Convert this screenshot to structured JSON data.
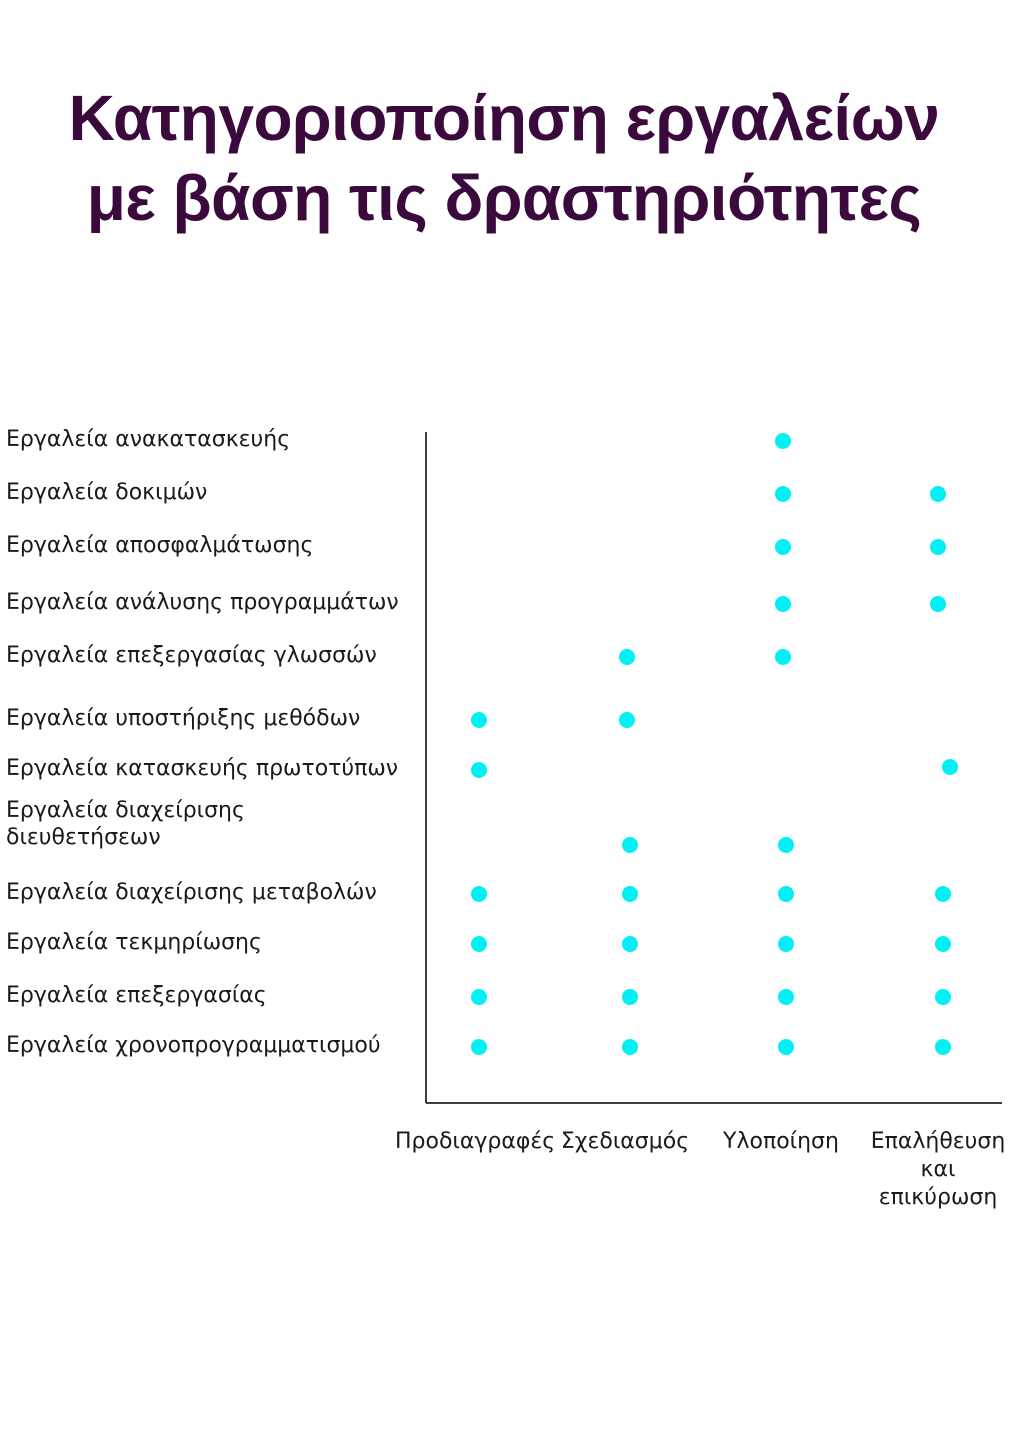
{
  "title": {
    "line1": "Κατηγοριοποίηση εργαλείων",
    "line2": "με βάση τις δραστηριότητες"
  },
  "colors": {
    "title": "#3a0a3c",
    "dot": "#00f0f5",
    "axis": "#000000"
  },
  "chart_data": {
    "type": "scatter",
    "title": "Κατηγοριοποίηση εργαλείων με βάση τις δραστηριότητες",
    "xlabel": "",
    "ylabel": "",
    "grid": false,
    "legend": "none",
    "categories_x": [
      "Προδιαγραφές",
      "Σχεδιασμός",
      "Υλοποίηση",
      "Επαλήθευση και επικύρωση"
    ],
    "categories_y": [
      "Εργαλεία ανακατασκευής",
      "Εργαλεία δοκιμών",
      "Εργαλεία αποσφαλμάτωσης",
      "Εργαλεία ανάλυσης προγραμμάτων",
      "Εργαλεία επεξεργασίας γλωσσών",
      "Εργαλεία υποστήριξης μεθόδων",
      "Εργαλεία κατασκευής πρωτοτύπων",
      "Εργαλεία διαχείρισης διευθετήσεων",
      "Εργαλεία διαχείρισης μεταβολών",
      "Εργαλεία τεκμηρίωσης",
      "Εργαλεία επεξεργασίας",
      "Εργαλεία χρονοπρογραμματισμού"
    ],
    "matrix": [
      [
        0,
        0,
        1,
        0
      ],
      [
        0,
        0,
        1,
        1
      ],
      [
        0,
        0,
        1,
        1
      ],
      [
        0,
        0,
        1,
        1
      ],
      [
        0,
        1,
        1,
        0
      ],
      [
        1,
        1,
        0,
        0
      ],
      [
        1,
        0,
        0,
        1
      ],
      [
        0,
        1,
        1,
        0
      ],
      [
        1,
        1,
        1,
        1
      ],
      [
        1,
        1,
        1,
        1
      ],
      [
        1,
        1,
        1,
        1
      ],
      [
        1,
        1,
        1,
        1
      ]
    ]
  }
}
